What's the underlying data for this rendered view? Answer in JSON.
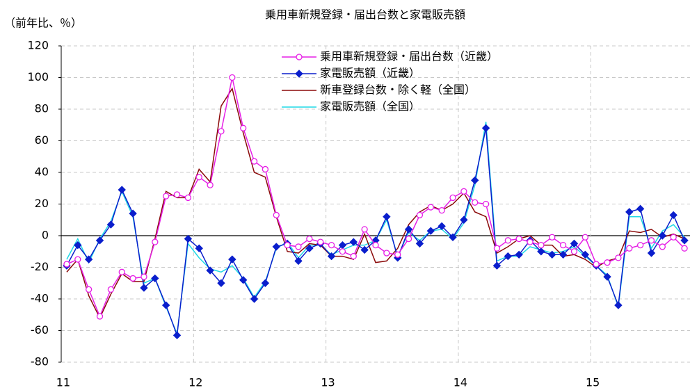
{
  "chart_data": {
    "type": "line",
    "title": "乗用車新規登録・届出台数と家電販売額",
    "y_label": "（前年比、％）",
    "categories": [
      "11",
      null,
      null,
      null,
      null,
      null,
      null,
      null,
      null,
      null,
      null,
      null,
      "12",
      null,
      null,
      null,
      null,
      null,
      null,
      null,
      null,
      null,
      null,
      null,
      "13",
      null,
      null,
      null,
      null,
      null,
      null,
      null,
      null,
      null,
      null,
      null,
      "14",
      null,
      null,
      null,
      null,
      null,
      null,
      null,
      null,
      null,
      null,
      null,
      "15",
      null,
      null,
      null,
      null,
      null,
      null,
      null,
      null
    ],
    "ylim": [
      -80,
      120
    ],
    "yticks": [
      -80,
      -60,
      -40,
      -20,
      0,
      20,
      40,
      60,
      80,
      100,
      120
    ],
    "grid": true,
    "legend": "upper center",
    "series": [
      {
        "name": "乗用車新規登録・届出台数（近畿）",
        "color": "#e61ee6",
        "marker": "circle",
        "values": [
          -18,
          -15,
          -34,
          -51,
          -34,
          -23,
          -27,
          -26,
          -4,
          25,
          26,
          24,
          37,
          32,
          66,
          100,
          68,
          47,
          42,
          13,
          -6,
          -7,
          -2,
          -4,
          -6,
          -10,
          -13,
          4,
          -6,
          -11,
          -12,
          -2,
          13,
          18,
          16,
          24,
          28,
          21,
          20,
          -8,
          -3,
          -2,
          -4,
          -6,
          -1,
          -6,
          -10,
          -1,
          -18,
          -17,
          -14,
          -8,
          -6,
          -3,
          -7,
          -1,
          -8
        ]
      },
      {
        "name": "家電販売額（近畿）",
        "color": "#0a1ecc",
        "marker": "diamond",
        "values": [
          -19,
          -6,
          -15,
          -3,
          7,
          29,
          14,
          -33,
          -27,
          -44,
          -63,
          -2,
          -8,
          -22,
          -30,
          -15,
          -28,
          -40,
          -30,
          -7,
          -5,
          -16,
          -8,
          -5,
          -13,
          -6,
          -4,
          -9,
          -3,
          12,
          -14,
          4,
          -5,
          3,
          6,
          -1,
          10,
          35,
          68,
          -19,
          -13,
          -12,
          -3,
          -10,
          -12,
          -12,
          -5,
          -12,
          -19,
          -26,
          -44,
          15,
          17,
          -11,
          0,
          13,
          -3
        ]
      },
      {
        "name": "新車登録台数・除く軽（全国）",
        "color": "#8b0a0a",
        "values": [
          -23,
          -15,
          -38,
          -52,
          -37,
          -24,
          -29,
          -29,
          -2,
          28,
          24,
          24,
          42,
          34,
          82,
          93,
          65,
          40,
          37,
          12,
          -10,
          -11,
          -5,
          -6,
          -13,
          -13,
          -15,
          1,
          -17,
          -16,
          -8,
          7,
          15,
          19,
          16,
          20,
          27,
          15,
          12,
          -11,
          -7,
          -2,
          0,
          -6,
          -6,
          -13,
          -12,
          -15,
          -20,
          -16,
          -14,
          3,
          2,
          4,
          -1,
          1,
          -2
        ]
      },
      {
        "name": "家電販売額（全国）",
        "color": "#1ed8e6",
        "values": [
          -15,
          -2,
          -17,
          -2,
          9,
          28,
          12,
          -30,
          -27,
          -45,
          -62,
          -5,
          -14,
          -21,
          -23,
          -19,
          -27,
          -39,
          -29,
          -8,
          -4,
          -14,
          -6,
          -6,
          -12,
          -9,
          -6,
          -6,
          -3,
          10,
          -13,
          2,
          -3,
          3,
          4,
          -2,
          8,
          32,
          72,
          -16,
          -13,
          -13,
          -7,
          -9,
          -11,
          -10,
          -7,
          -13,
          -19,
          -25,
          -45,
          12,
          12,
          -8,
          3,
          7,
          -1
        ]
      }
    ]
  }
}
